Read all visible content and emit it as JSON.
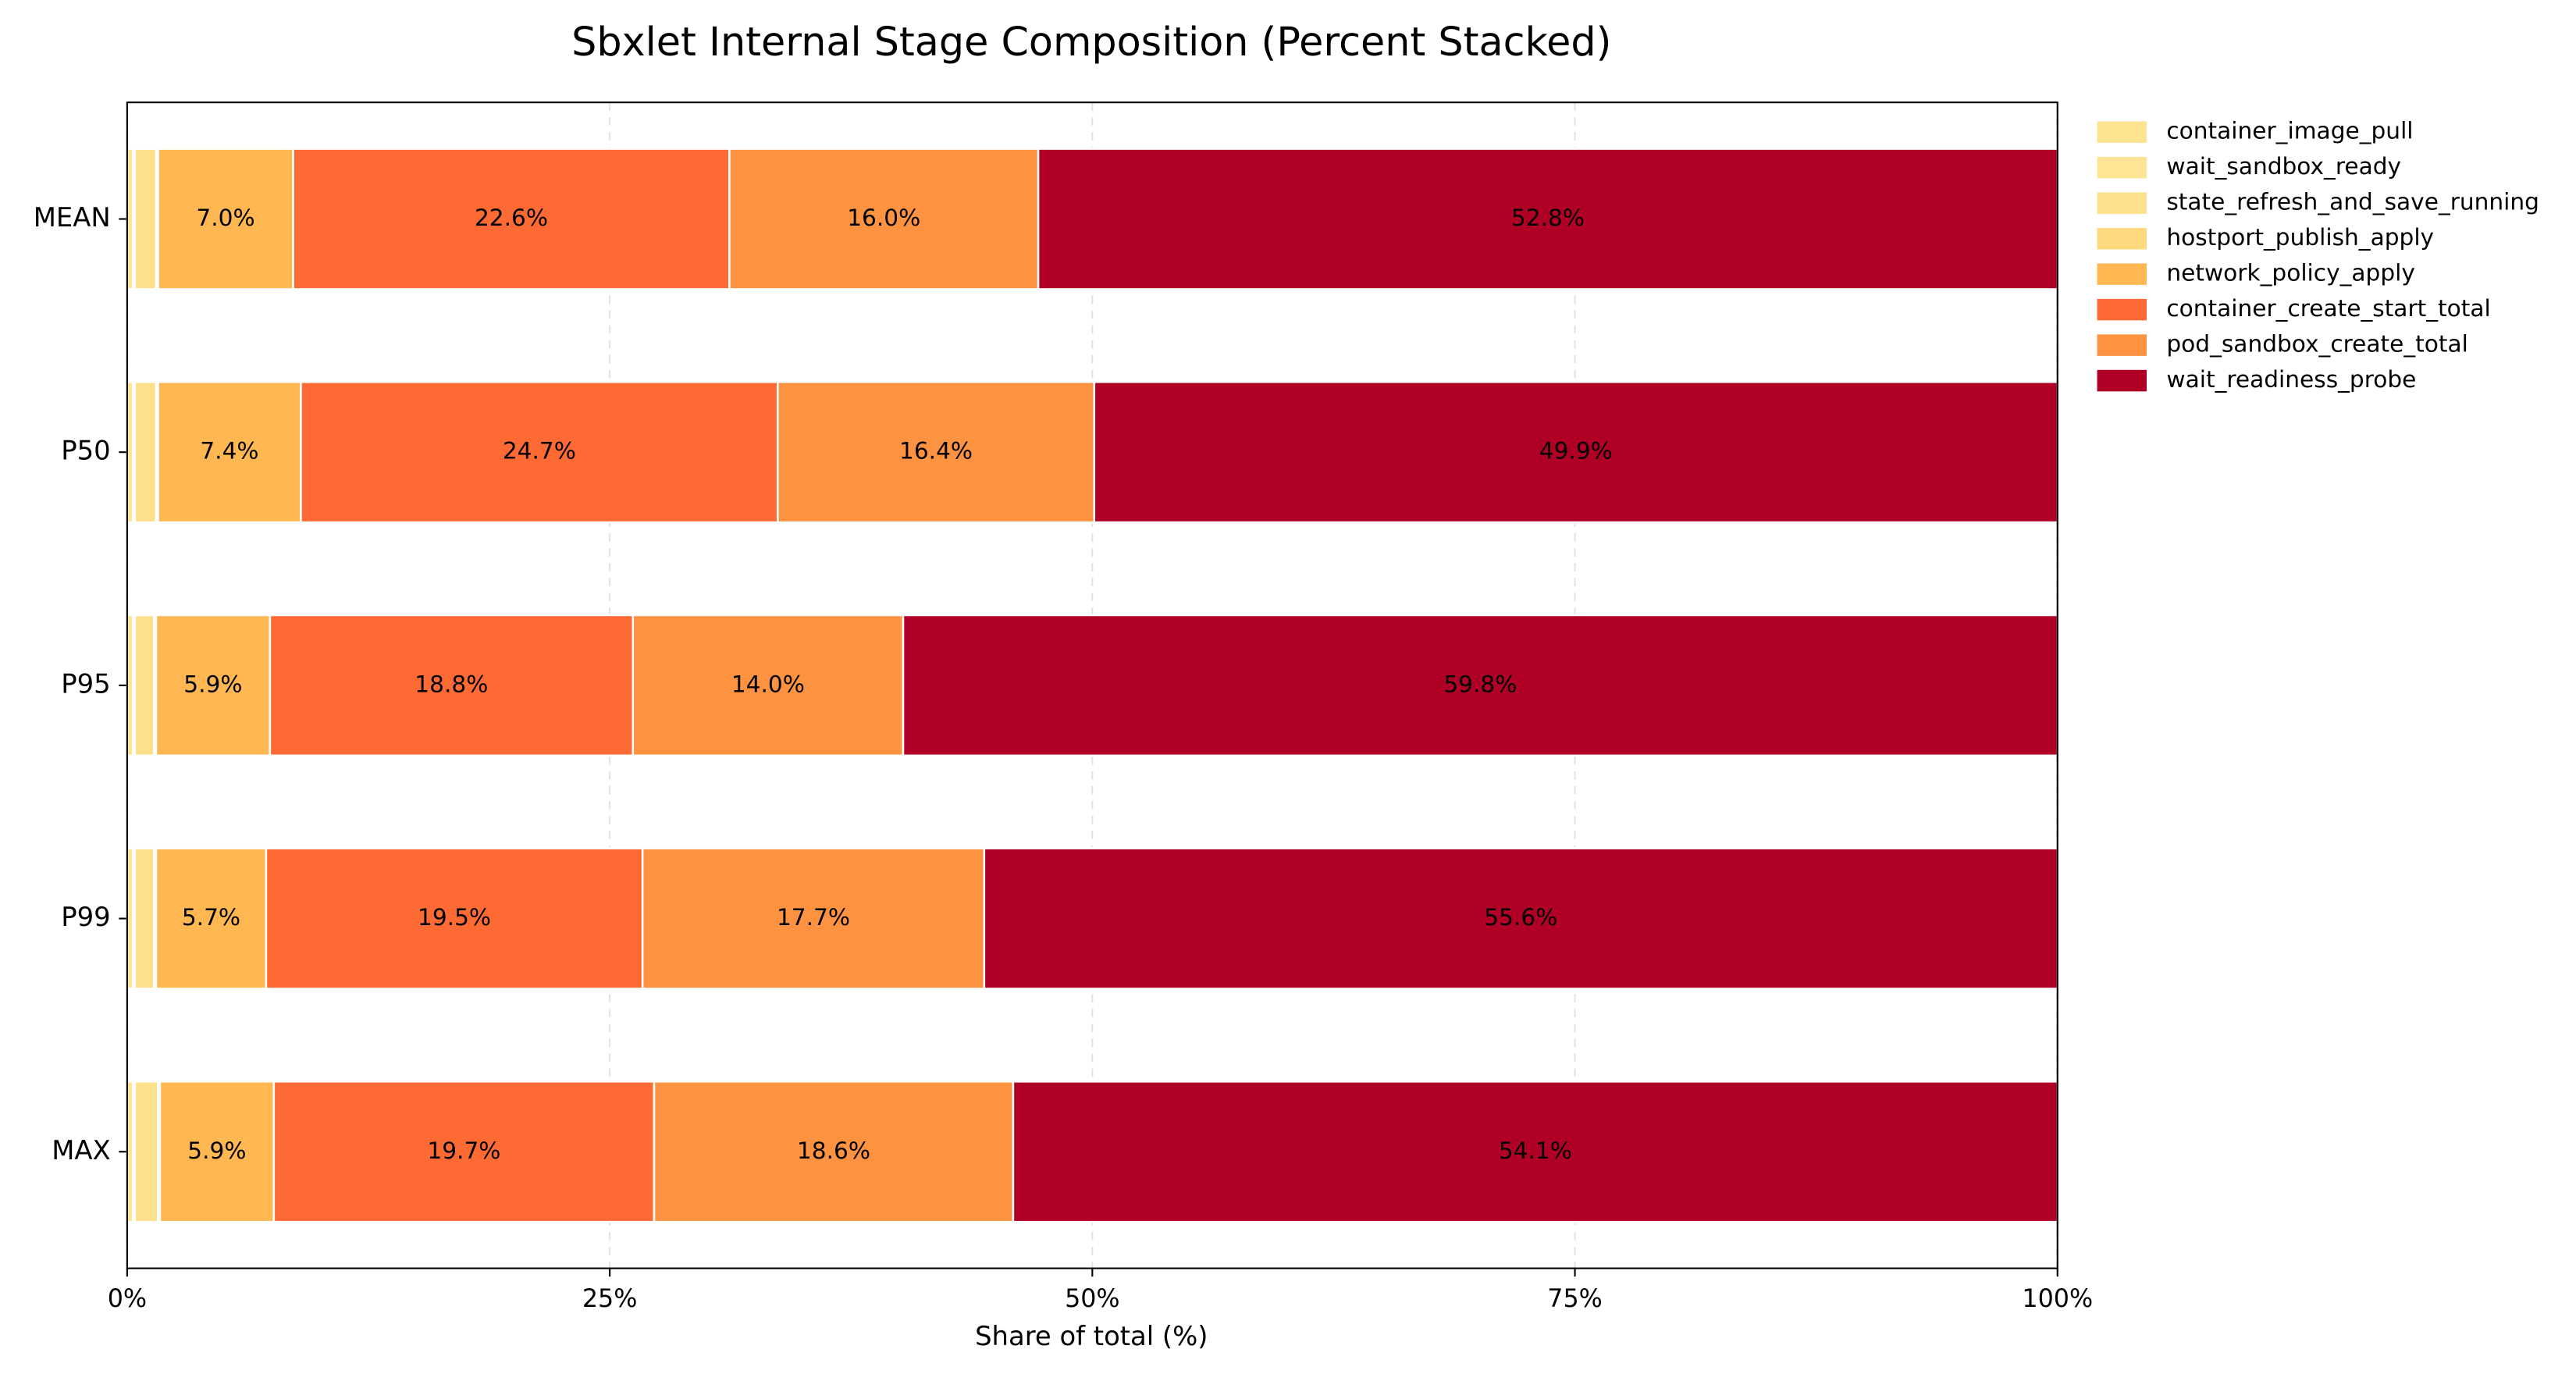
{
  "chart_data": {
    "type": "hbar_stacked",
    "title": "Sbxlet Internal Stage Composition (Percent Stacked)",
    "x_label": "Share of total (%)",
    "categories": [
      "MEAN",
      "P50",
      "P95",
      "P99",
      "MAX"
    ],
    "series": [
      {
        "name": "container_image_pull",
        "color": "#fee391",
        "values": [
          0.3,
          0.3,
          0.3,
          0.3,
          0.3
        ]
      },
      {
        "name": "wait_sandbox_ready",
        "color": "#fee595",
        "values": [
          0.1,
          0.1,
          0.1,
          0.1,
          0.1
        ]
      },
      {
        "name": "state_refresh_and_save_running",
        "color": "#fedf8c",
        "values": [
          1.1,
          1.1,
          1.0,
          1.0,
          1.2
        ]
      },
      {
        "name": "hostport_publish_apply",
        "color": "#fed97d",
        "values": [
          0.1,
          0.1,
          0.1,
          0.1,
          0.1
        ]
      },
      {
        "name": "network_policy_apply",
        "color": "#feb751",
        "values": [
          7.0,
          7.4,
          5.9,
          5.7,
          5.9
        ],
        "value_labels": [
          "7.0%",
          "7.4%",
          "5.9%",
          "5.7%",
          "5.9%"
        ]
      },
      {
        "name": "container_create_start_total",
        "color": "#fd6a34",
        "values": [
          22.6,
          24.7,
          18.8,
          19.5,
          19.7
        ],
        "value_labels": [
          "22.6%",
          "24.7%",
          "18.8%",
          "19.5%",
          "19.7%"
        ]
      },
      {
        "name": "pod_sandbox_create_total",
        "color": "#fd9240",
        "values": [
          16.0,
          16.4,
          14.0,
          17.7,
          18.6
        ],
        "value_labels": [
          "16.0%",
          "16.4%",
          "14.0%",
          "17.7%",
          "18.6%"
        ]
      },
      {
        "name": "wait_readiness_probe",
        "color": "#b10026",
        "values": [
          52.8,
          49.9,
          59.8,
          55.6,
          54.1
        ],
        "value_labels": [
          "52.8%",
          "49.9%",
          "59.8%",
          "55.6%",
          "54.1%"
        ]
      }
    ],
    "xlim": [
      0,
      100
    ],
    "xticks": [
      {
        "value": 0,
        "label": "0%"
      },
      {
        "value": 25,
        "label": "25%"
      },
      {
        "value": 50,
        "label": "50%"
      },
      {
        "value": 75,
        "label": "75%"
      },
      {
        "value": 100,
        "label": "100%"
      }
    ],
    "grid": true,
    "legend": "outside-right"
  }
}
